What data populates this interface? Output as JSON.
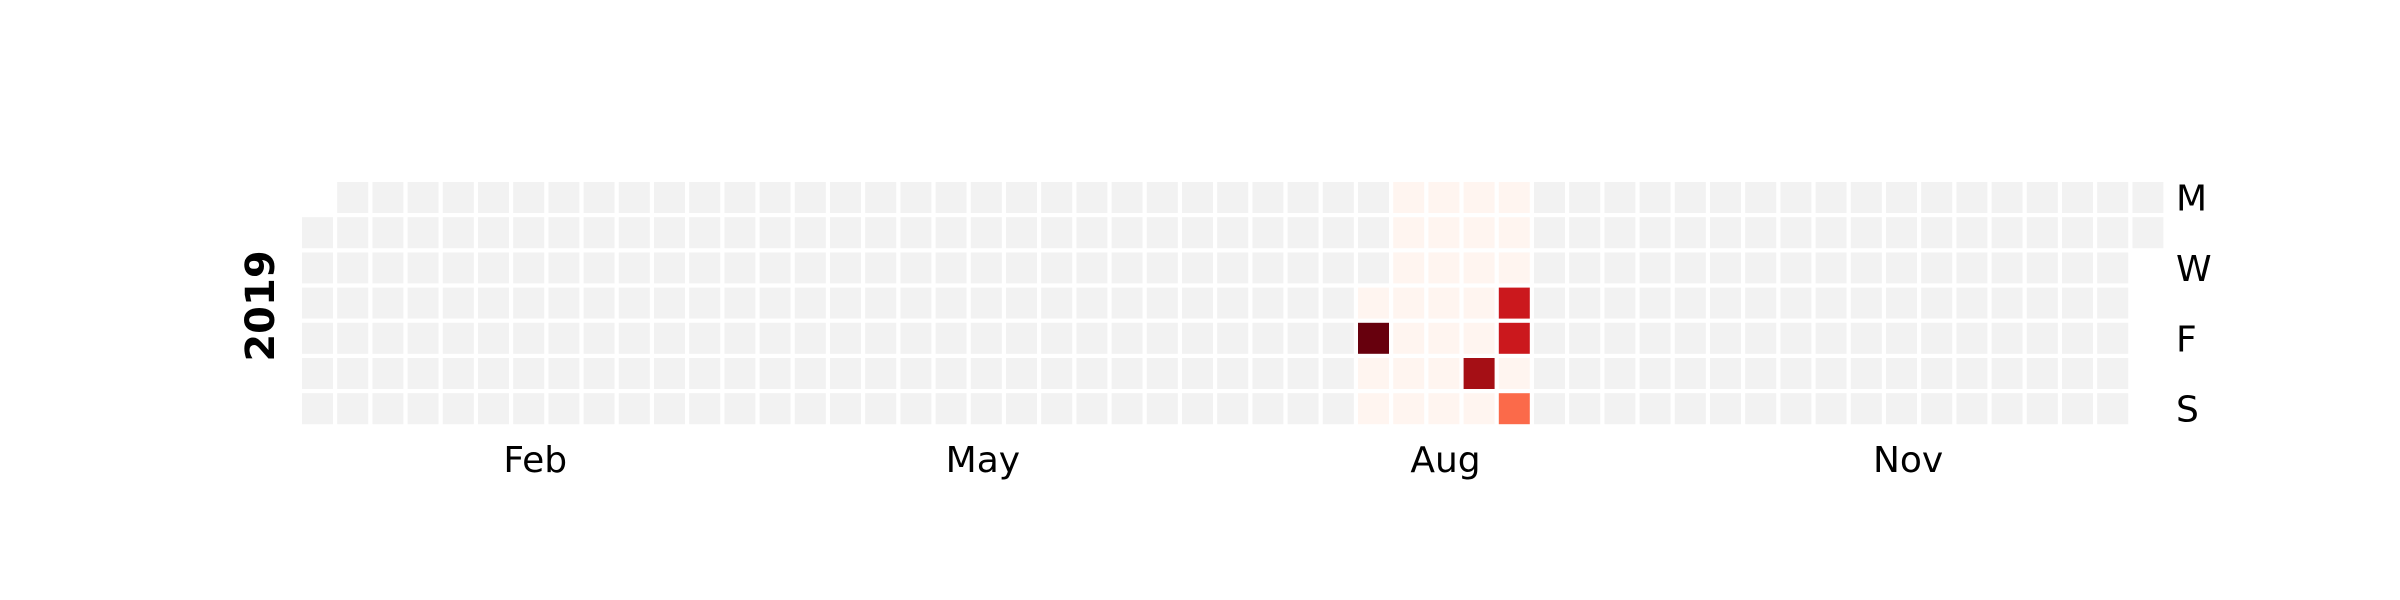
{
  "chart_data": {
    "type": "heatmap",
    "year": "2019",
    "month_labels": [
      "Feb",
      "May",
      "Aug",
      "Nov"
    ],
    "weekday_labels": [
      "M",
      "W",
      "F",
      "S"
    ],
    "colors": {
      "empty": "#f2f2f2",
      "scale": [
        "#fff5f0",
        "#fee0d2",
        "#fcbba1",
        "#fc9272",
        "#fb6a4a",
        "#ef3b2c",
        "#cb181d",
        "#a50f15",
        "#67000d"
      ]
    },
    "values": [
      {
        "date": "2019-08-01",
        "value": 1
      },
      {
        "date": "2019-08-02",
        "value": 100
      },
      {
        "date": "2019-08-03",
        "value": 2
      },
      {
        "date": "2019-08-04",
        "value": 2
      },
      {
        "date": "2019-08-05",
        "value": 1
      },
      {
        "date": "2019-08-06",
        "value": 1
      },
      {
        "date": "2019-08-07",
        "value": 1
      },
      {
        "date": "2019-08-08",
        "value": 1
      },
      {
        "date": "2019-08-09",
        "value": 1
      },
      {
        "date": "2019-08-10",
        "value": 1
      },
      {
        "date": "2019-08-11",
        "value": 1
      },
      {
        "date": "2019-08-12",
        "value": 1
      },
      {
        "date": "2019-08-13",
        "value": 1
      },
      {
        "date": "2019-08-14",
        "value": 1
      },
      {
        "date": "2019-08-15",
        "value": 1
      },
      {
        "date": "2019-08-16",
        "value": 1
      },
      {
        "date": "2019-08-17",
        "value": 1
      },
      {
        "date": "2019-08-18",
        "value": 1
      },
      {
        "date": "2019-08-19",
        "value": 1
      },
      {
        "date": "2019-08-20",
        "value": 1
      },
      {
        "date": "2019-08-21",
        "value": 1
      },
      {
        "date": "2019-08-22",
        "value": 1
      },
      {
        "date": "2019-08-23",
        "value": 1
      },
      {
        "date": "2019-08-24",
        "value": 85
      },
      {
        "date": "2019-08-25",
        "value": 1
      },
      {
        "date": "2019-08-26",
        "value": 2
      },
      {
        "date": "2019-08-27",
        "value": 1
      },
      {
        "date": "2019-08-28",
        "value": 2
      },
      {
        "date": "2019-08-29",
        "value": 70
      },
      {
        "date": "2019-08-30",
        "value": 70
      },
      {
        "date": "2019-08-31",
        "value": 1
      },
      {
        "date": "2019-09-01",
        "value": 45
      }
    ]
  }
}
